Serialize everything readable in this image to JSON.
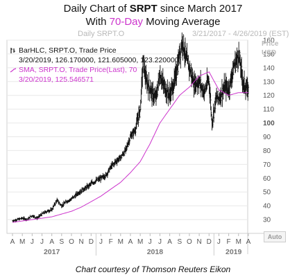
{
  "header": {
    "title_prefix": "Daily Chart of ",
    "title_ticker": "SRPT",
    "title_suffix": " since March 2017",
    "subtitle_prefix": "With ",
    "subtitle_accent": "70-Day",
    "subtitle_suffix": " Moving Average",
    "chart_name": "Daily SRPT.O",
    "date_range": "3/21/2017 - 4/26/2019 (EST)"
  },
  "legend": {
    "bar_label": "BarHLC, SRPT.O, Trade Price",
    "bar_values": "3/20/2019, 126.170000, 121.605000, 123.220000",
    "ma_label": "SMA, SRPT.O, Trade Price(Last), 70",
    "ma_values": "3/20/2019, 125.546571"
  },
  "axis": {
    "price_label": "Price",
    "currency_label": "USD",
    "auto_label": "Auto"
  },
  "caption": "Chart courtesy of Thomson Reuters Eikon",
  "colors": {
    "price_bars": "#111111",
    "moving_average": "#cc33cc",
    "axis_text": "#555555",
    "grid": "#e8e8e8"
  },
  "chart_data": {
    "type": "line",
    "title": "Daily Chart of SRPT since March 2017",
    "subtitle": "With 70-Day Moving Average",
    "ylabel": "Price USD",
    "ylim": [
      20,
      160
    ],
    "y_ticks": [
      30,
      40,
      50,
      60,
      70,
      80,
      90,
      100,
      110,
      120,
      130,
      140,
      150,
      160
    ],
    "month_ticks": [
      "A",
      "M",
      "J",
      "J",
      "A",
      "S",
      "O",
      "N",
      "D",
      "J",
      "F",
      "M",
      "A",
      "M",
      "J",
      "J",
      "A",
      "S",
      "O",
      "N",
      "D",
      "J",
      "F",
      "M",
      "A"
    ],
    "year_labels": [
      {
        "label": "2017",
        "month_index": 0
      },
      {
        "label": "2018",
        "month_index": 9
      },
      {
        "label": "2019",
        "month_index": 21
      }
    ],
    "series": [
      {
        "name": "SRPT.O Trade Price",
        "style": "ohlc",
        "x": [
          0,
          0.5,
          1,
          1.5,
          2,
          2.5,
          3,
          3.5,
          4,
          4.5,
          5,
          5.5,
          6,
          6.5,
          7,
          7.5,
          8,
          8.5,
          9,
          9.5,
          10,
          10.5,
          11,
          11.5,
          12,
          12.5,
          13,
          13.3,
          13.6,
          14,
          14.3,
          14.6,
          15,
          15.5,
          16,
          16.5,
          17,
          17.3,
          17.6,
          18,
          18.5,
          19,
          19.5,
          20,
          20.3,
          20.7,
          21,
          21.3,
          21.7,
          22,
          22.5,
          23,
          23.5,
          24
        ],
        "values": [
          29,
          30,
          31,
          30,
          33,
          31,
          34,
          36,
          37,
          44,
          40,
          43,
          45,
          48,
          51,
          53,
          56,
          58,
          60,
          62,
          68,
          72,
          75,
          80,
          90,
          95,
          110,
          145,
          130,
          125,
          120,
          118,
          135,
          125,
          120,
          130,
          150,
          160,
          148,
          140,
          128,
          130,
          122,
          132,
          100,
          118,
          118,
          122,
          126,
          124,
          140,
          150,
          128,
          123
        ]
      },
      {
        "name": "SMA 70",
        "style": "line",
        "x": [
          0,
          1,
          2,
          3,
          4,
          5,
          6,
          7,
          8,
          9,
          10,
          11,
          12,
          13,
          14,
          15,
          16,
          17,
          18,
          19,
          20,
          21,
          22,
          23,
          24
        ],
        "values": [
          28,
          29,
          30,
          31,
          32,
          34,
          36,
          39,
          43,
          47,
          52,
          57,
          64,
          72,
          85,
          100,
          110,
          120,
          126,
          134,
          137,
          124,
          120,
          122,
          122
        ]
      }
    ]
  }
}
